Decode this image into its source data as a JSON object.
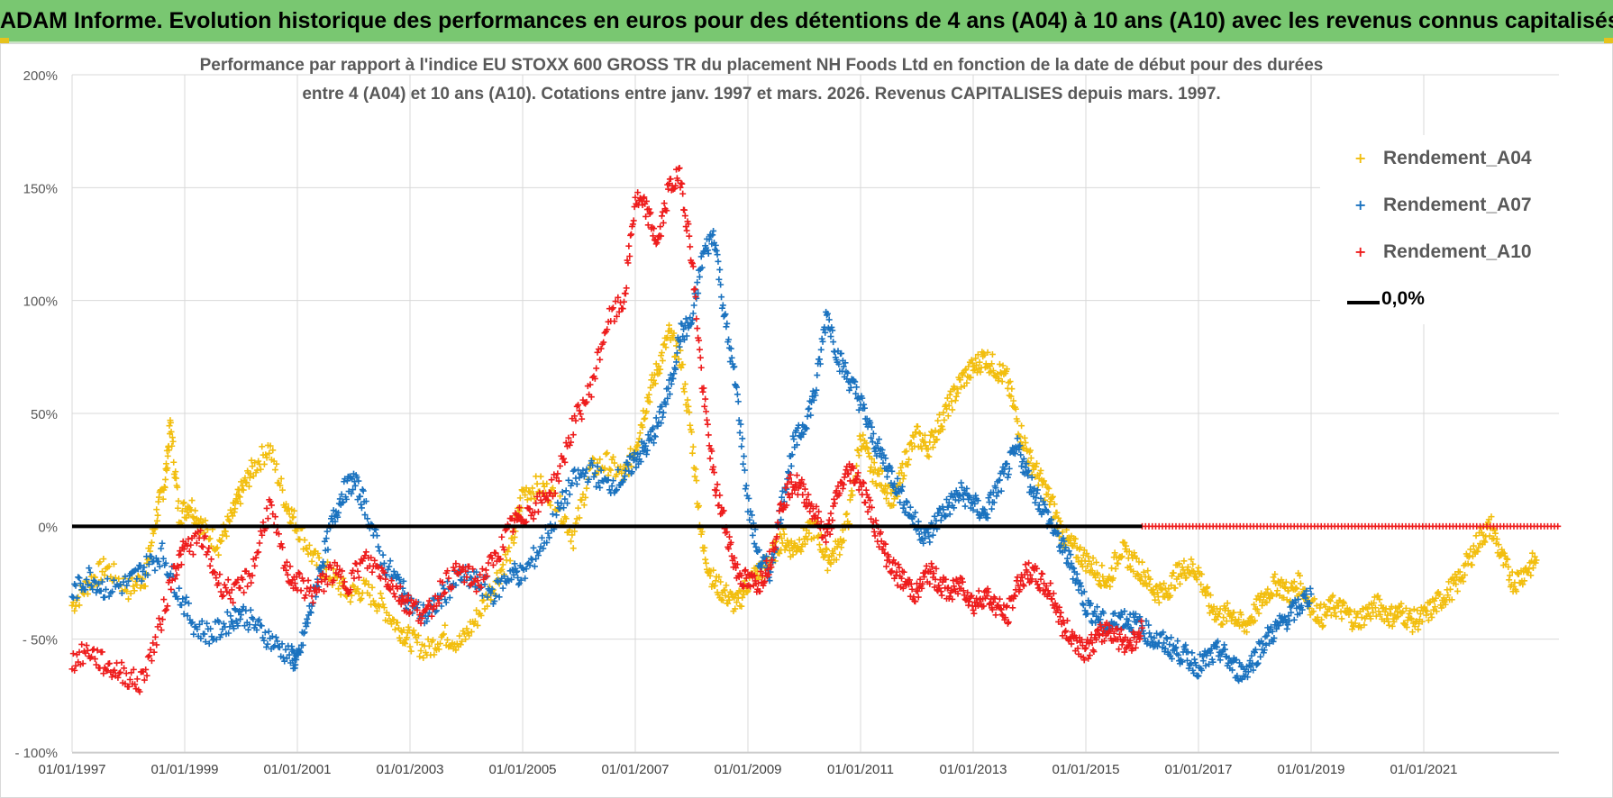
{
  "header": {
    "title": "ADAM Informe. Evolution historique des performances en euros pour des détentions de 4 ans (A04) à 10 ans (A10) avec les revenus connus capitalisés"
  },
  "colors": {
    "banner": "#79c771",
    "A04": "#f2be0e",
    "A07": "#1a72bf",
    "A10": "#ee1c1c",
    "zero_line": "#000000",
    "grid": "#d9d9d9"
  },
  "chart_data": {
    "type": "scatter",
    "title_line1": "Performance par rapport à l'indice EU STOXX 600 GROSS TR  du placement NH Foods Ltd en fonction de la date de début pour des durées",
    "title_line2": "entre 4 (A04) et 10 ans (A10).  Cotations entre janv. 1997 et mars. 2026.  Revenus CAPITALISES depuis mars. 1997.",
    "x_type": "date",
    "xlim": [
      1997.0,
      2023.4
    ],
    "x_ticks": [
      "01/01/1997",
      "01/01/1999",
      "01/01/2001",
      "01/01/2003",
      "01/01/2005",
      "01/01/2007",
      "01/01/2009",
      "01/01/2011",
      "01/01/2013",
      "01/01/2015",
      "01/01/2017",
      "01/01/2019",
      "01/01/2021"
    ],
    "x_tick_years": [
      1997,
      1999,
      2001,
      2003,
      2005,
      2007,
      2009,
      2011,
      2013,
      2015,
      2017,
      2019,
      2021
    ],
    "ylim": [
      -100,
      200
    ],
    "y_ticks": [
      200,
      150,
      100,
      50,
      0,
      -50,
      -100
    ],
    "y_tick_labels": [
      "200%",
      "150%",
      "100%",
      "50%",
      "0%",
      "- 50%",
      "- 100%"
    ],
    "series": [
      {
        "name": "Rendement_A04",
        "marker": "+",
        "color": "#f2be0e",
        "x": [
          1997.0,
          1997.3,
          1997.6,
          1998.0,
          1998.3,
          1998.5,
          1998.65,
          1998.75,
          1998.9,
          1999.1,
          1999.3,
          1999.6,
          1999.85,
          2000.0,
          2000.2,
          2000.5,
          2000.8,
          2001.0,
          2001.3,
          2001.6,
          2001.9,
          2002.2,
          2002.5,
          2002.8,
          2003.0,
          2003.3,
          2003.6,
          2003.9,
          2004.2,
          2004.5,
          2004.8,
          2005.0,
          2005.3,
          2005.6,
          2005.9,
          2006.2,
          2006.5,
          2006.8,
          2007.0,
          2007.2,
          2007.4,
          2007.6,
          2007.8,
          2008.0,
          2008.2,
          2008.4,
          2008.6,
          2008.8,
          2009.0,
          2009.2,
          2009.4,
          2009.6,
          2009.8,
          2010.0,
          2010.2,
          2010.4,
          2010.6,
          2010.8,
          2011.0,
          2011.2,
          2011.4,
          2011.6,
          2011.8,
          2012.0,
          2012.2,
          2012.4,
          2012.6,
          2012.8,
          2013.0,
          2013.2,
          2013.4,
          2013.6,
          2013.8,
          2014.0,
          2014.2,
          2014.4,
          2014.6,
          2014.8,
          2015.0,
          2015.2,
          2015.4,
          2015.6,
          2015.8,
          2016.0,
          2016.2,
          2016.4,
          2016.6,
          2016.8,
          2017.0,
          2017.2,
          2017.4,
          2017.6,
          2017.8,
          2018.0,
          2018.2,
          2018.4,
          2018.6,
          2018.8,
          2019.0,
          2019.2,
          2019.4,
          2019.6,
          2019.8,
          2020.0,
          2020.2,
          2020.4,
          2020.6,
          2020.8,
          2021.0,
          2021.2,
          2021.4,
          2021.6,
          2021.8,
          2022.0,
          2022.2,
          2022.4,
          2022.6,
          2022.8,
          2023.0
        ],
        "y": [
          -35,
          -25,
          -18,
          -28,
          -22,
          5,
          20,
          45,
          5,
          10,
          0,
          -8,
          5,
          15,
          25,
          35,
          10,
          0,
          -15,
          -22,
          -30,
          -28,
          -35,
          -45,
          -50,
          -55,
          -48,
          -52,
          -40,
          -25,
          -10,
          15,
          18,
          12,
          -5,
          25,
          28,
          22,
          35,
          55,
          70,
          85,
          75,
          40,
          -10,
          -25,
          -30,
          -35,
          -25,
          -20,
          -15,
          -5,
          -10,
          -5,
          0,
          -15,
          -10,
          5,
          40,
          25,
          20,
          10,
          30,
          40,
          35,
          45,
          55,
          65,
          70,
          75,
          70,
          65,
          45,
          30,
          20,
          10,
          -5,
          -10,
          -15,
          -20,
          -25,
          -10,
          -15,
          -20,
          -28,
          -30,
          -22,
          -18,
          -20,
          -35,
          -40,
          -38,
          -45,
          -38,
          -30,
          -25,
          -30,
          -25,
          -35,
          -40,
          -35,
          -38,
          -42,
          -38,
          -35,
          -40,
          -38,
          -42,
          -40,
          -35,
          -30,
          -25,
          -15,
          -5,
          0,
          -15,
          -25,
          -20,
          -15
        ],
        "sample_tick_labels": [
          "01/01/1997",
          "01/01/1999",
          "01/01/2001",
          "01/01/2003",
          "01/01/2005",
          "01/01/2007",
          "01/01/2009",
          "01/01/2011",
          "01/01/2013",
          "01/01/2015",
          "01/01/2017",
          "01/01/2019",
          "01/01/2021"
        ]
      },
      {
        "name": "Rendement_A07",
        "marker": "+",
        "color": "#1a72bf",
        "x": [
          1997.0,
          1997.3,
          1997.6,
          1998.0,
          1998.3,
          1998.6,
          1998.9,
          1999.2,
          1999.5,
          1999.8,
          2000.0,
          2000.3,
          2000.6,
          2000.9,
          2001.0,
          2001.2,
          2001.4,
          2001.6,
          2001.8,
          2002.0,
          2002.2,
          2002.5,
          2002.8,
          2003.0,
          2003.3,
          2003.6,
          2003.9,
          2004.2,
          2004.5,
          2004.8,
          2005.0,
          2005.3,
          2005.6,
          2005.9,
          2006.2,
          2006.5,
          2006.8,
          2007.0,
          2007.2,
          2007.4,
          2007.6,
          2007.8,
          2008.0,
          2008.2,
          2008.4,
          2008.6,
          2008.8,
          2009.0,
          2009.2,
          2009.4,
          2009.6,
          2009.8,
          2010.0,
          2010.2,
          2010.4,
          2010.6,
          2010.8,
          2011.0,
          2011.2,
          2011.4,
          2011.6,
          2011.8,
          2012.0,
          2012.2,
          2012.4,
          2012.6,
          2012.8,
          2013.0,
          2013.2,
          2013.4,
          2013.6,
          2013.8,
          2014.0,
          2014.2,
          2014.4,
          2014.6,
          2014.8,
          2015.0,
          2015.2,
          2015.4,
          2015.6,
          2015.8,
          2016.0,
          2016.2,
          2016.4,
          2016.6,
          2016.8,
          2017.0,
          2017.2,
          2017.4,
          2017.6,
          2017.8,
          2018.0,
          2018.2,
          2018.4,
          2018.6,
          2018.8,
          2019.0
        ],
        "y": [
          -30,
          -22,
          -28,
          -25,
          -18,
          -12,
          -30,
          -45,
          -48,
          -42,
          -38,
          -45,
          -52,
          -58,
          -60,
          -40,
          -20,
          0,
          15,
          20,
          10,
          -15,
          -25,
          -35,
          -40,
          -30,
          -22,
          -25,
          -30,
          -20,
          -22,
          -10,
          5,
          20,
          25,
          18,
          22,
          30,
          35,
          45,
          60,
          85,
          90,
          120,
          130,
          90,
          60,
          10,
          -15,
          -20,
          10,
          35,
          45,
          60,
          95,
          75,
          65,
          55,
          40,
          30,
          20,
          10,
          0,
          -5,
          5,
          10,
          15,
          10,
          5,
          15,
          25,
          35,
          20,
          10,
          0,
          -10,
          -20,
          -35,
          -40,
          -45,
          -40,
          -42,
          -45,
          -50,
          -52,
          -55,
          -58,
          -62,
          -58,
          -55,
          -62,
          -65,
          -58,
          -50,
          -45,
          -40,
          -35,
          -30
        ],
        "sample_tick_labels": [
          "01/01/1997",
          "01/01/1999",
          "01/01/2001",
          "01/01/2003",
          "01/01/2005",
          "01/01/2007",
          "01/01/2009",
          "01/01/2011",
          "01/01/2013",
          "01/01/2015",
          "01/01/2017",
          "01/01/2019",
          "01/01/2021"
        ]
      },
      {
        "name": "Rendement_A10",
        "marker": "+",
        "color": "#ee1c1c",
        "x": [
          1997.0,
          1997.3,
          1997.6,
          1997.9,
          1998.2,
          1998.5,
          1998.8,
          1999.0,
          1999.3,
          1999.6,
          1999.9,
          2000.2,
          2000.5,
          2000.8,
          2001.0,
          2001.3,
          2001.6,
          2001.9,
          2002.2,
          2002.5,
          2002.8,
          2003.0,
          2003.3,
          2003.6,
          2003.9,
          2004.2,
          2004.5,
          2004.8,
          2005.0,
          2005.3,
          2005.6,
          2005.9,
          2006.2,
          2006.5,
          2006.8,
          2007.0,
          2007.2,
          2007.4,
          2007.6,
          2007.8,
          2008.0,
          2008.2,
          2008.4,
          2008.6,
          2008.8,
          2009.0,
          2009.2,
          2009.4,
          2009.6,
          2009.8,
          2010.0,
          2010.2,
          2010.4,
          2010.6,
          2010.8,
          2011.0,
          2011.2,
          2011.4,
          2011.6,
          2011.8,
          2012.0,
          2012.2,
          2012.4,
          2012.6,
          2012.8,
          2013.0,
          2013.2,
          2013.4,
          2013.6,
          2013.8,
          2014.0,
          2014.2,
          2014.4,
          2014.6,
          2014.8,
          2015.0,
          2015.2,
          2015.4,
          2015.6,
          2015.8,
          2016.0
        ],
        "y": [
          -60,
          -55,
          -62,
          -65,
          -70,
          -50,
          -20,
          -10,
          -5,
          -25,
          -30,
          -20,
          10,
          -20,
          -25,
          -30,
          -20,
          -25,
          -15,
          -20,
          -30,
          -35,
          -40,
          -25,
          -20,
          -25,
          -15,
          0,
          5,
          10,
          20,
          45,
          60,
          90,
          100,
          145,
          140,
          125,
          150,
          155,
          120,
          60,
          20,
          0,
          -20,
          -25,
          -25,
          -15,
          10,
          20,
          15,
          5,
          -5,
          15,
          25,
          20,
          5,
          -10,
          -20,
          -25,
          -30,
          -20,
          -25,
          -30,
          -25,
          -35,
          -30,
          -35,
          -40,
          -25,
          -20,
          -25,
          -30,
          -45,
          -50,
          -55,
          -50,
          -45,
          -50,
          -52,
          -45
        ],
        "flat_zero_from": 2016.0,
        "flat_zero_to": 2023.4,
        "sample_tick_labels": [
          "01/01/1997",
          "01/01/1999",
          "01/01/2001",
          "01/01/2003",
          "01/01/2005",
          "01/01/2007",
          "01/01/2009",
          "01/01/2011",
          "01/01/2013",
          "01/01/2015",
          "01/01/2017",
          "01/01/2019",
          "01/01/2021"
        ]
      }
    ],
    "reference_line": {
      "name": "0,0%",
      "y": 0,
      "color": "#000000"
    },
    "legend": {
      "position": "top-right",
      "items": [
        {
          "label": "Rendement_A04",
          "marker": "+",
          "color": "#f2be0e"
        },
        {
          "label": "Rendement_A07",
          "marker": "+",
          "color": "#1a72bf"
        },
        {
          "label": "Rendement_A10",
          "marker": "+",
          "color": "#ee1c1c"
        },
        {
          "label": "0,0%",
          "marker": "line",
          "color": "#000000"
        }
      ]
    }
  }
}
